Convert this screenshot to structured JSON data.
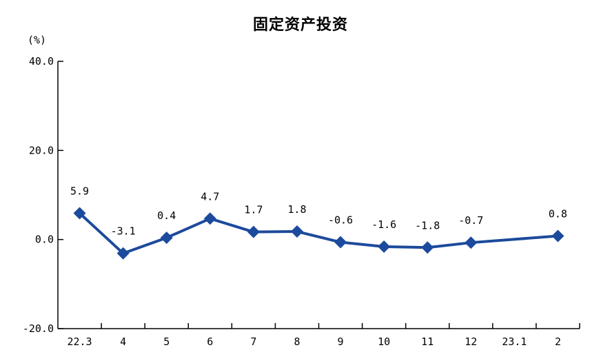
{
  "page": {
    "background_color": "#ffffff"
  },
  "chart_data": {
    "type": "line",
    "title": "固定资产投资",
    "unit": "(%)",
    "categories": [
      "22.3",
      "4",
      "5",
      "6",
      "7",
      "8",
      "9",
      "10",
      "11",
      "12",
      "23.1",
      "2"
    ],
    "series": [
      {
        "name": "固定资产投资",
        "values": [
          5.9,
          -3.1,
          0.4,
          4.7,
          1.7,
          1.8,
          -0.6,
          -1.6,
          -1.8,
          -0.7,
          null,
          0.8
        ]
      }
    ],
    "data_labels": [
      "5.9",
      "-3.1",
      "0.4",
      "4.7",
      "1.7",
      "1.8",
      "-0.6",
      "-1.6",
      "-1.8",
      "-0.7",
      null,
      "0.8"
    ],
    "y_ticks": [
      40.0,
      20.0,
      0.0,
      -20.0
    ],
    "y_tick_labels": [
      "40.0",
      "20.0",
      "0.0",
      "-20.0"
    ],
    "ylim": [
      -20,
      40
    ],
    "grid": false,
    "legend": false,
    "marker": "diamond",
    "colors": {
      "series": "#1C4A9C",
      "axis": "#000000",
      "text": "#000000"
    }
  }
}
